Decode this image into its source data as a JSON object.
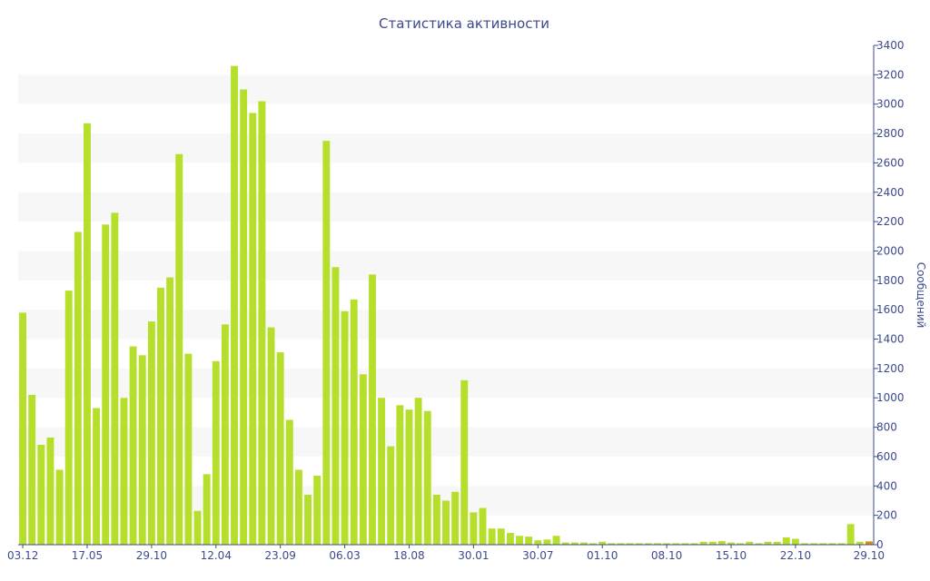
{
  "chart_data": {
    "type": "bar",
    "title": "Статистика активности",
    "ylabel": "Сообщений",
    "ylim": [
      0,
      3400
    ],
    "y_ticks": [
      0,
      200,
      400,
      600,
      800,
      1000,
      1200,
      1400,
      1600,
      1800,
      2000,
      2200,
      2400,
      2600,
      2800,
      3000,
      3200,
      3400
    ],
    "y_axis_side": "right",
    "grid": "alternating horizontal bands",
    "bar_color": "#b5df2a",
    "last_bar_color": "#ef8020",
    "x_tick_labels": [
      {
        "label": "03.12",
        "bar_index": 0
      },
      {
        "label": "17.05",
        "bar_index": 7
      },
      {
        "label": "29.10",
        "bar_index": 14
      },
      {
        "label": "12.04",
        "bar_index": 21
      },
      {
        "label": "23.09",
        "bar_index": 28
      },
      {
        "label": "06.03",
        "bar_index": 35
      },
      {
        "label": "18.08",
        "bar_index": 42
      },
      {
        "label": "30.01",
        "bar_index": 49
      },
      {
        "label": "30.07",
        "bar_index": 56
      },
      {
        "label": "01.10",
        "bar_index": 63
      },
      {
        "label": "08.10",
        "bar_index": 70
      },
      {
        "label": "15.10",
        "bar_index": 77
      },
      {
        "label": "22.10",
        "bar_index": 84
      },
      {
        "label": "29.10",
        "bar_index": 91
      }
    ],
    "values": [
      1580,
      1020,
      680,
      730,
      510,
      1730,
      2130,
      2870,
      930,
      2180,
      2260,
      1000,
      1350,
      1290,
      1520,
      1750,
      1820,
      2660,
      1300,
      230,
      480,
      1250,
      1500,
      3260,
      3100,
      2940,
      3020,
      1480,
      1310,
      850,
      510,
      340,
      470,
      2750,
      1890,
      1590,
      1670,
      1160,
      1840,
      1000,
      670,
      950,
      920,
      1000,
      910,
      340,
      300,
      360,
      1120,
      220,
      250,
      110,
      110,
      80,
      60,
      55,
      30,
      35,
      60,
      15,
      15,
      15,
      10,
      20,
      10,
      10,
      10,
      10,
      10,
      10,
      10,
      10,
      10,
      10,
      20,
      20,
      25,
      15,
      10,
      20,
      10,
      20,
      20,
      50,
      40,
      10,
      10,
      10,
      10,
      10,
      140,
      20,
      25
    ]
  }
}
